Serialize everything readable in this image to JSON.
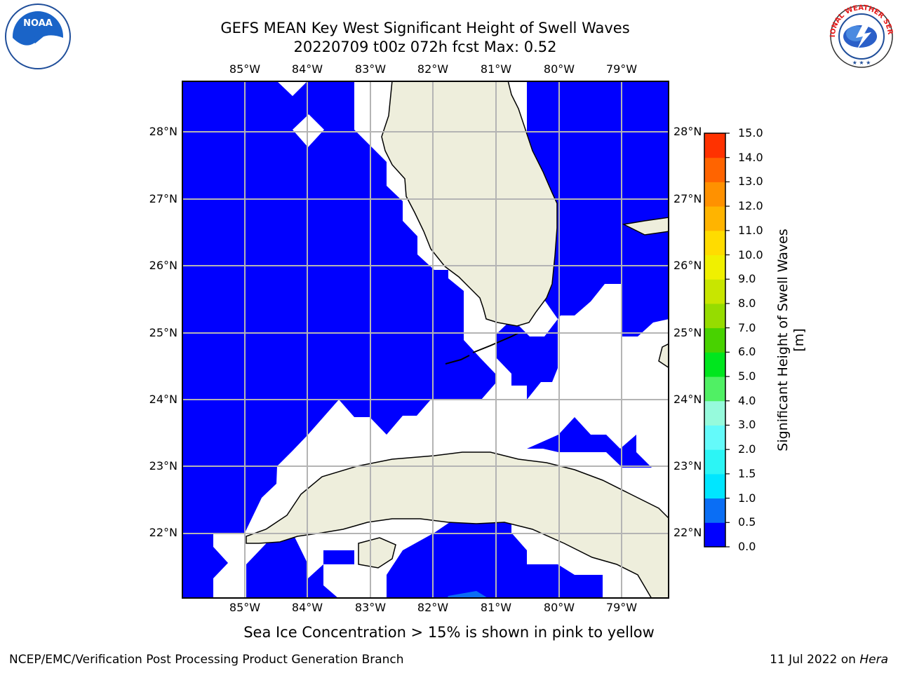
{
  "title_line1": "GEFS MEAN Key West Significant Height of Swell Waves",
  "title_line2": "20220709 t00z 072h fcst   Max: 0.52",
  "map": {
    "longitudes": [
      "85°W",
      "84°W",
      "83°W",
      "82°W",
      "81°W",
      "80°W",
      "79°W"
    ],
    "latitudes": [
      "28°N",
      "27°N",
      "26°N",
      "25°N",
      "24°N",
      "23°N",
      "22°N"
    ],
    "extent": {
      "lon": [
        -86.0,
        -78.25
      ],
      "lat": [
        21.05,
        28.8
      ]
    },
    "colors": {
      "sea": "#0000ff",
      "land": "#eeeedc",
      "nodata": "#ffffff",
      "grid": "#b4b4b4",
      "light": "#0a6ef5"
    }
  },
  "colorbar": {
    "label": "Significant Height of Swell Waves [m]",
    "ticks": [
      "0.0",
      "0.5",
      "1.0",
      "1.5",
      "2.0",
      "3.0",
      "4.0",
      "5.0",
      "6.0",
      "7.0",
      "8.0",
      "9.0",
      "10.0",
      "11.0",
      "12.0",
      "13.0",
      "14.0",
      "15.0"
    ],
    "colors": [
      "#0000ff",
      "#0a6ef5",
      "#00e6ff",
      "#2cf5f5",
      "#64fafa",
      "#96fadc",
      "#50f064",
      "#00e61e",
      "#48d200",
      "#96dc00",
      "#c8e600",
      "#f0f000",
      "#ffdc00",
      "#ffb400",
      "#ff9100",
      "#ff6400",
      "#ff3200",
      "#ff0000"
    ]
  },
  "note": "Sea Ice Concentration > 15% is shown in pink to yellow",
  "footer_left": "NCEP/EMC/Verification Post Processing Product Generation Branch",
  "footer_date": "11 Jul 2022 on ",
  "footer_host": "Hera",
  "logos": {
    "noaa_text": "NOAA",
    "nws_text": "NATIONAL WEATHER SERVICE"
  }
}
